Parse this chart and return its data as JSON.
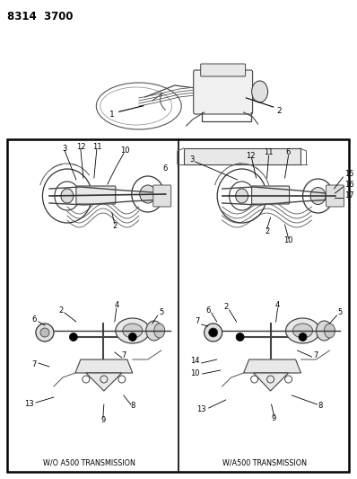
{
  "title_code": "8314  3700",
  "bg_color": "#ffffff",
  "label_left": "W/O A500 TRANSMISSION",
  "label_right": "W/A500 TRANSMISSION",
  "fig_width": 3.98,
  "fig_height": 5.33,
  "dpi": 100
}
